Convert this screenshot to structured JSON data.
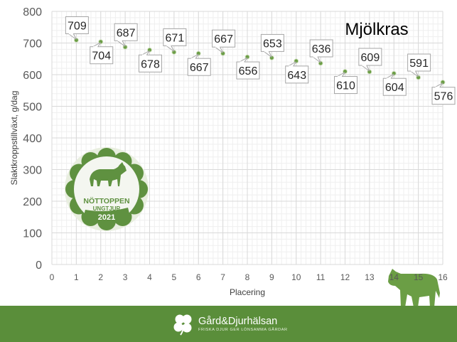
{
  "chart_data": {
    "type": "scatter",
    "title": "Mjölkras",
    "xlabel": "Placering",
    "ylabel": "Slaktkroppstillväxt, g/dag",
    "xlim": [
      0,
      16
    ],
    "ylim": [
      0,
      800
    ],
    "xticks": [
      0,
      1,
      2,
      3,
      4,
      5,
      6,
      7,
      8,
      9,
      10,
      11,
      12,
      13,
      14,
      15,
      16
    ],
    "yticks": [
      0,
      100,
      200,
      300,
      400,
      500,
      600,
      700,
      800
    ],
    "grid": true,
    "minor_grid": true,
    "legend": "none",
    "marker_color": "#6b9e45",
    "series": [
      {
        "x": [
          1,
          2,
          3,
          4,
          5,
          6,
          7,
          8,
          9,
          10,
          11,
          12,
          13,
          14,
          15,
          16
        ],
        "values": [
          709,
          704,
          687,
          678,
          671,
          667,
          667,
          656,
          653,
          643,
          636,
          610,
          609,
          604,
          591,
          576
        ],
        "labels": [
          "709",
          "704",
          "687",
          "678",
          "671",
          "667",
          "667",
          "656",
          "653",
          "643",
          "636",
          "610",
          "609",
          "604",
          "591",
          "576"
        ]
      }
    ]
  },
  "badge": {
    "line1": "NÖTTOPPEN",
    "line2": "UNGTJUR",
    "year": "2021",
    "icon": "cow-icon"
  },
  "cow_silhouette": "cow-icon",
  "footer": {
    "brand_name": "Gård&Djurhälsan",
    "tagline": "FRISKA DJUR GER LÖNSAMMA GÅRDAR",
    "logo_icon": "clover-icon",
    "background": "#5a8e3a"
  }
}
